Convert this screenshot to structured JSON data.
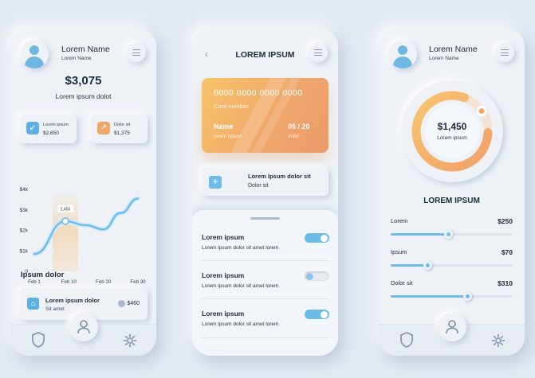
{
  "screen1": {
    "user": {
      "name": "Lorem Name",
      "subtitle": "Lorem Name"
    },
    "balance": "$3,075",
    "balance_label": "Lorem ipsum dolot",
    "stats": [
      {
        "label": "Lorem ipsum",
        "value": "$2,650",
        "icon": "arrow-down-left-icon",
        "color": "#5cb0e0"
      },
      {
        "label": "Dolor sit",
        "value": "$1,375",
        "icon": "arrow-up-right-icon",
        "color": "#f0a86a"
      }
    ],
    "chart_data": {
      "type": "line",
      "categories": [
        "Feb 1",
        "Feb 10",
        "Feb 20",
        "Feb 30"
      ],
      "y_ticks": [
        "$4k",
        "$3k",
        "$2k",
        "$1k",
        "0"
      ],
      "ylim": [
        0,
        4000
      ],
      "series": [
        {
          "x": [
            0,
            0.9,
            1.5,
            2.0,
            2.5,
            3.0
          ],
          "values": [
            850,
            2450,
            2250,
            2050,
            2850,
            3550
          ]
        }
      ],
      "highlight": {
        "category": "Feb 10",
        "label": "2,450",
        "value": 2450,
        "x": 0.9
      }
    },
    "section_title": "Ipsum dolor",
    "transaction": {
      "title": "Lorem ipsum dolor",
      "subtitle": "Sit amet",
      "amount": "$460"
    }
  },
  "screen2": {
    "title": "LOREM IPSUM",
    "card": {
      "number": "0000 0000 0000 0000",
      "number_label": "Card number",
      "name": "Name",
      "name_sub": "lorem ipsum",
      "expiry": "05 / 20",
      "expiry_sub": "dolor"
    },
    "add_card": {
      "title": "Lorem Ipsum dolor sit",
      "subtitle": "Dolor sit"
    },
    "settings": [
      {
        "title": "Lorem ipsum",
        "subtitle": "Lorem ipsum dolor sit amet lorem",
        "on": true
      },
      {
        "title": "Lorem ipsum",
        "subtitle": "Lorem ipsum dolor sit amet lorem",
        "on": false
      },
      {
        "title": "Lorem ipsum",
        "subtitle": "Lorem ipsum dolor sit amet lorem",
        "on": true
      }
    ]
  },
  "screen3": {
    "user": {
      "name": "Lorem Name",
      "subtitle": "Lorem Name"
    },
    "ring": {
      "amount": "$1,450",
      "label": "Lorem ipsum",
      "progress": 0.8
    },
    "heading": "LOREM IPSUM",
    "sliders": [
      {
        "label": "Lorem",
        "value": "$250",
        "fraction": 0.47
      },
      {
        "label": "Ipsum",
        "value": "$70",
        "fraction": 0.3
      },
      {
        "label": "Dolor sit",
        "value": "$310",
        "fraction": 0.63
      }
    ]
  },
  "colors": {
    "accent": "#6cbbe8",
    "orange": "#f0a86a",
    "background": "#e3e9f1"
  },
  "icons": {
    "bottom_left": "shield-icon",
    "bottom_center": "user-icon",
    "bottom_right": "gear-icon"
  }
}
